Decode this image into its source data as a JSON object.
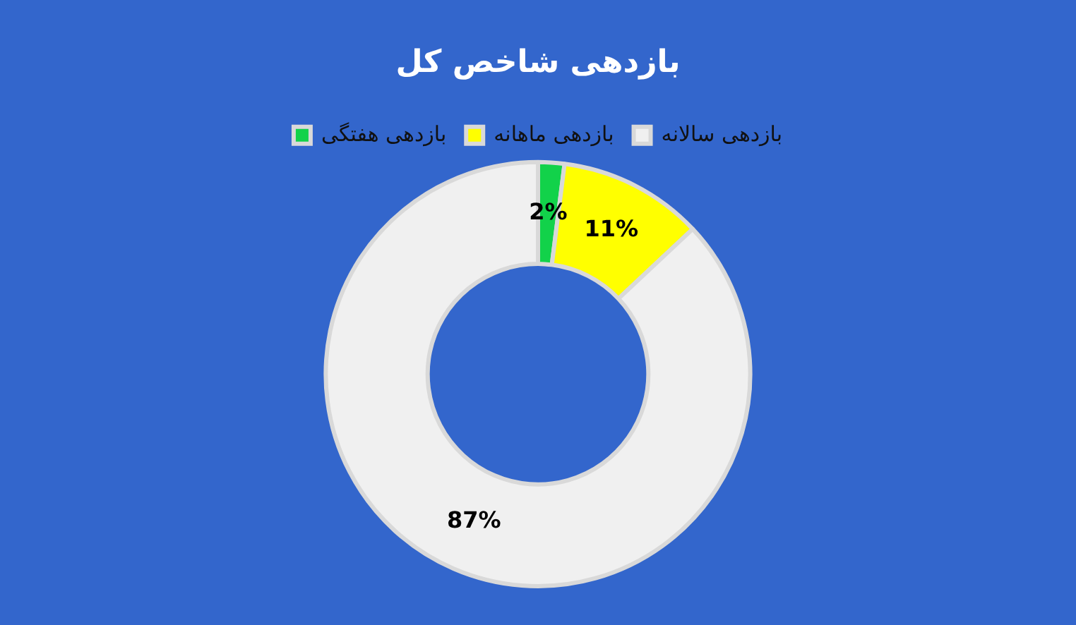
{
  "chart_data": {
    "type": "donut",
    "title": "بازدهی شاخص کل",
    "categories": [
      "بازدهی هفتگی",
      "بازدهی ماهانه",
      "بازدهی سالانه"
    ],
    "values": [
      2,
      11,
      87
    ],
    "colors": [
      "#12d24a",
      "#ffff00",
      "#f0f0f0"
    ],
    "value_labels": [
      "2%",
      "11%",
      "87%"
    ],
    "legend": "top"
  }
}
